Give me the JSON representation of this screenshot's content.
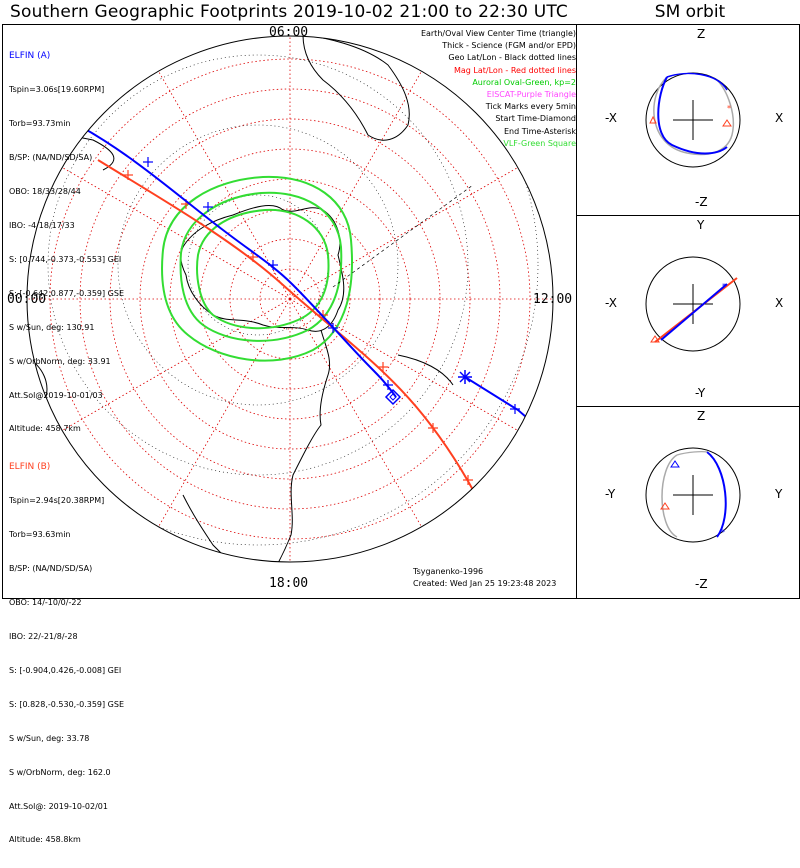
{
  "title": "Southern Geographic Footprints 2019-10-02 21:00 to 22:30 UTC",
  "sm_title": "SM orbit",
  "mlt_labels": {
    "top": "06:00",
    "left": "00:00",
    "right": "12:00",
    "bottom": "18:00"
  },
  "elfin_a": {
    "heading": "ELFIN (A)",
    "lines": [
      "Tspin=3.06s[19.60RPM]",
      "Torb=93.73min",
      "B/SP: (NA/ND/SD/SA)",
      "OBO: 18/33/28/44",
      "IBO: -4/18/17/33",
      "S: [0.744,-0.373,-0.553] GEI",
      "S: [-0.642,0.877,-0.359] GSE",
      "S w/Sun, deg: 130.91",
      "S w/OrbNorm, deg: 33.91",
      "Att.Sol@2019-10-01/03",
      "Altitude: 458.7km"
    ],
    "color": "#0000ff"
  },
  "elfin_b": {
    "heading": "ELFIN (B)",
    "lines": [
      "Tspin=2.94s[20.38RPM]",
      "Torb=93.63min",
      "B/SP: (NA/ND/SD/SA)",
      "OBO: 14/-10/0/-22",
      "IBO: 22/-21/8/-28",
      "S: [-0.904,0.426,-0.008] GEI",
      "S: [0.828,-0.530,-0.359] GSE",
      "S w/Sun, deg: 33.78",
      "S w/OrbNorm, deg: 162.0",
      "Att.Sol@: 2019-10-02/01",
      "Altitude: 458.8km"
    ],
    "color": "#ff0000"
  },
  "legend": [
    {
      "text": "Earth/Oval View Center Time (triangle)",
      "color": "#000000"
    },
    {
      "text": "Thick - Science (FGM and/or EPD)",
      "color": "#000000"
    },
    {
      "text": "Geo Lat/Lon - Black dotted lines",
      "color": "#000000"
    },
    {
      "text": "Mag Lat/Lon - Red dotted lines",
      "color": "#ff0000"
    },
    {
      "text": "Auroral Oval-Green, kp=2",
      "color": "#00dd00"
    },
    {
      "text": "EISCAT-Purple Triangle",
      "color": "#ff44ff"
    },
    {
      "text": "Tick Marks every 5min",
      "color": "#000000"
    },
    {
      "text": "Start Time-Diamond",
      "color": "#000000"
    },
    {
      "text": "End Time-Asterisk",
      "color": "#000000"
    },
    {
      "text": "VLF-Green Square",
      "color": "#33dd33"
    }
  ],
  "credit": "Tsyganenko-1996",
  "created": "Created: Wed Jan 25 19:23:48 2023",
  "sm_panels": [
    {
      "top": "Z",
      "bottom": "-Z",
      "left": "-X",
      "right": "X"
    },
    {
      "top": "Y",
      "bottom": "-Y",
      "left": "-X",
      "right": "X"
    },
    {
      "top": "Z",
      "bottom": "-Z",
      "left": "-Y",
      "right": "Y"
    }
  ],
  "colors": {
    "elfin_a": "#0000ff",
    "elfin_b": "#ff4020",
    "oval": "#33dd33",
    "mag_grid": "#dd0000",
    "geo_grid": "#000000"
  }
}
